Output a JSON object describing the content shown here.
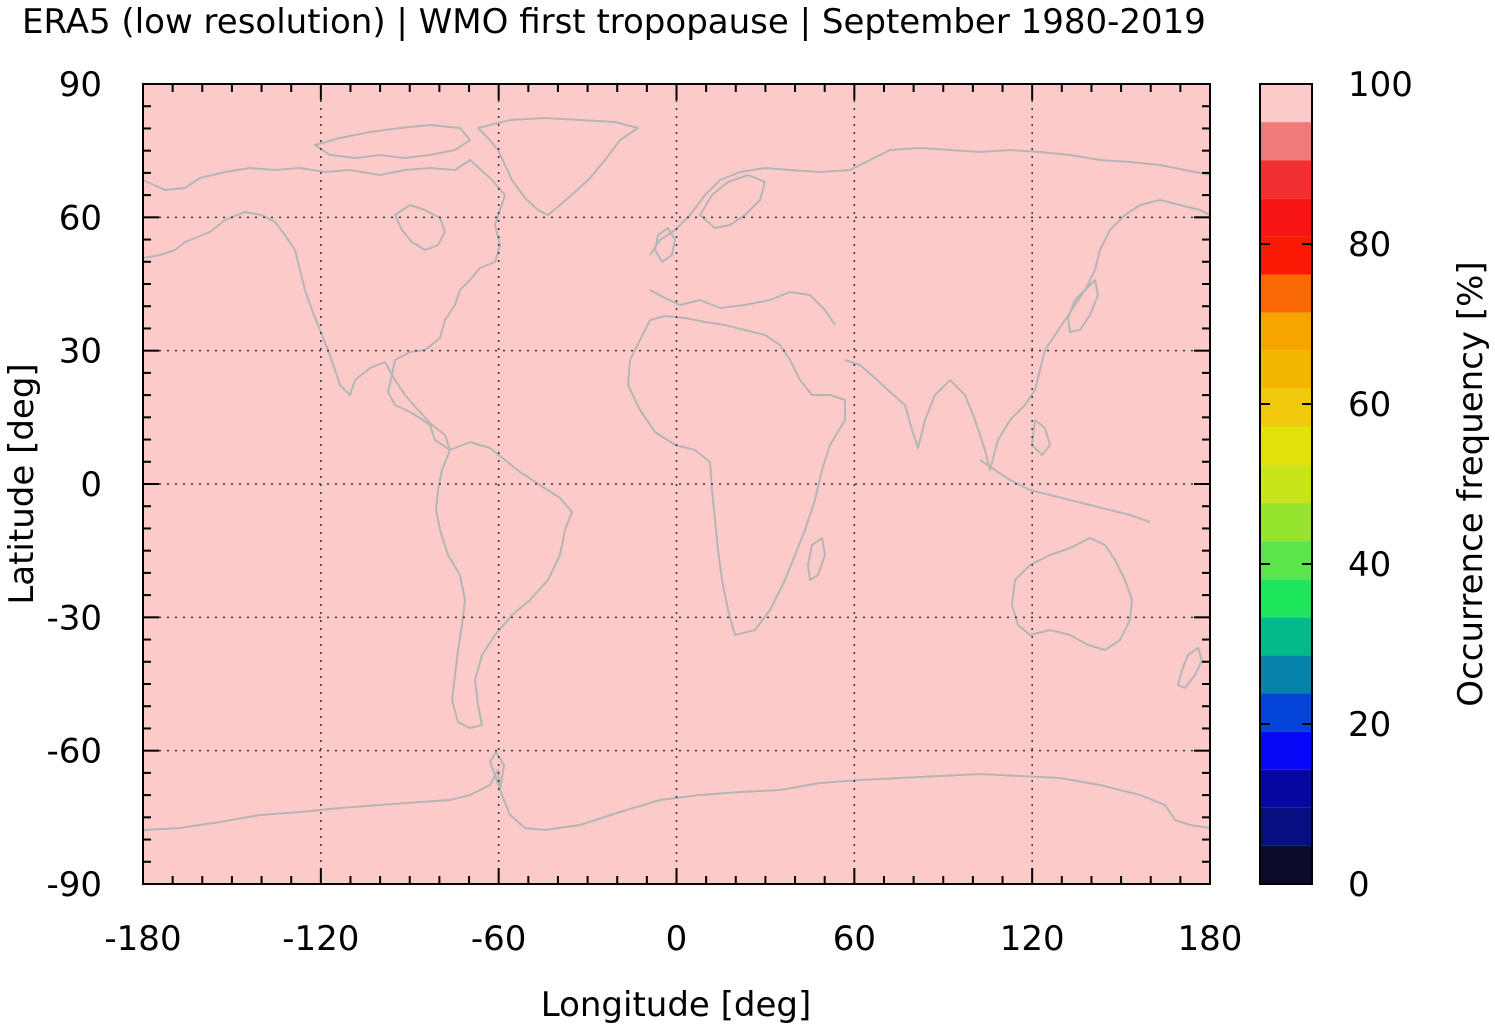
{
  "title": "ERA5 (low resolution) | WMO first tropopause | September 1980-2019",
  "chart_data": {
    "type": "heatmap",
    "title": "ERA5 (low resolution) | WMO first tropopause | September 1980-2019",
    "xlabel": "Longitude [deg]",
    "ylabel": "Latitude [deg]",
    "xlim": [
      -180,
      180
    ],
    "ylim": [
      -90,
      90
    ],
    "xticks": [
      -180,
      -120,
      -60,
      0,
      60,
      120,
      180
    ],
    "yticks": [
      90,
      60,
      30,
      0,
      -30,
      -60,
      -90
    ],
    "grid": true,
    "field_value": 100,
    "field_color": "#fdcaca",
    "coastline_color": "#b5b5b5",
    "colorbar": {
      "label": "Occurrence frequency [%]",
      "range": [
        0,
        100
      ],
      "ticks": [
        100,
        80,
        60,
        40,
        20,
        0
      ],
      "colors": [
        "#0b0b2c",
        "#050f80",
        "#0606a0",
        "#0707f7",
        "#0444d8",
        "#0583a8",
        "#04b98a",
        "#1de65c",
        "#5ae64a",
        "#96e42d",
        "#c8e41a",
        "#e4e20c",
        "#f0c80c",
        "#f5b600",
        "#f7a400",
        "#fb6904",
        "#fa1a04",
        "#f51515",
        "#f03030",
        "#f07a7a"
      ],
      "top_color": "#fdcaca"
    }
  }
}
